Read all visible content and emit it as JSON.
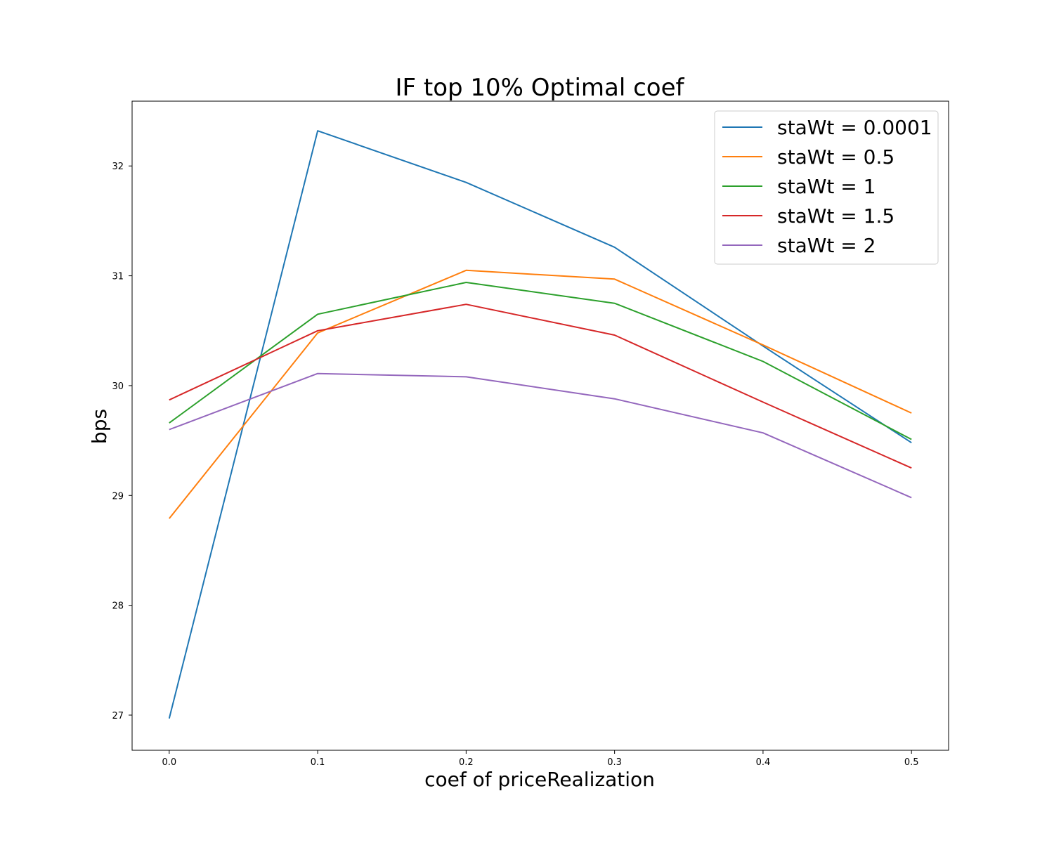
{
  "chart_data": {
    "type": "line",
    "title": "IF top 10% Optimal coef",
    "xlabel": "coef of priceRealization",
    "ylabel": "bps",
    "x": [
      0.0,
      0.1,
      0.2,
      0.3,
      0.4,
      0.5
    ],
    "xticks": [
      "0.0",
      "0.1",
      "0.2",
      "0.3",
      "0.4",
      "0.5"
    ],
    "yticks": [
      "27",
      "28",
      "29",
      "30",
      "31",
      "32"
    ],
    "xlim": [
      -0.025,
      0.525
    ],
    "ylim": [
      26.68,
      32.59
    ],
    "grid": false,
    "legend_position": "top-right",
    "series": [
      {
        "name": "staWt = 0.0001",
        "color": "#1f77b4",
        "values": [
          26.97,
          32.32,
          31.85,
          31.26,
          30.36,
          29.48
        ]
      },
      {
        "name": "staWt = 0.5",
        "color": "#ff7f0e",
        "values": [
          28.79,
          30.48,
          31.05,
          30.97,
          30.37,
          29.75
        ]
      },
      {
        "name": "staWt = 1",
        "color": "#2ca02c",
        "values": [
          29.66,
          30.65,
          30.94,
          30.75,
          30.22,
          29.51
        ]
      },
      {
        "name": "staWt = 1.5",
        "color": "#d62728",
        "values": [
          29.87,
          30.5,
          30.74,
          30.46,
          29.85,
          29.25
        ]
      },
      {
        "name": "staWt = 2",
        "color": "#9467bd",
        "values": [
          29.6,
          30.11,
          30.08,
          29.88,
          29.57,
          28.98
        ]
      }
    ]
  }
}
